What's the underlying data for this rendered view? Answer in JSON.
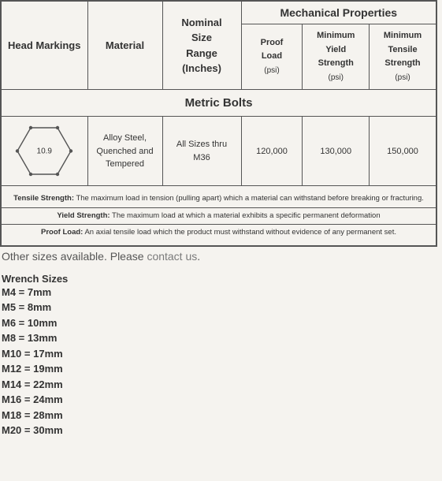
{
  "headers": {
    "head_markings": "Head Markings",
    "material": "Material",
    "nominal_l1": "Nominal",
    "nominal_l2": "Size",
    "nominal_l3": "Range",
    "nominal_l4": "(Inches)",
    "mech": "Mechanical Properties",
    "proof_l1": "Proof",
    "proof_l2": "Load",
    "proof_unit": "(psi)",
    "yield_l1": "Minimum",
    "yield_l2": "Yield",
    "yield_l3": "Strength",
    "yield_unit": "(psi)",
    "tensile_l1": "Minimum",
    "tensile_l2": "Tensile",
    "tensile_l3": "Strength",
    "tensile_unit": "(psi)"
  },
  "section_title": "Metric Bolts",
  "row": {
    "hex_marking": "10.9",
    "material": "Alloy Steel, Quenched and Tempered",
    "size_range": "All Sizes thru M36",
    "proof": "120,000",
    "yield": "130,000",
    "tensile": "150,000"
  },
  "defs": {
    "tensile_label": "Tensile Strength:",
    "tensile_text": " The maximum load in tension (pulling apart) which a material can withstand before breaking or fracturing.",
    "yield_label": "Yield Strength:",
    "yield_text": " The maximum load at which a material exhibits a specific permanent deformation",
    "proof_label": "Proof Load:",
    "proof_text": " An axial tensile load which the product must withstand without evidence of any permanent set."
  },
  "below": {
    "other_sizes_pre": "Other sizes available. Please ",
    "contact": "contact us",
    "other_sizes_post": "."
  },
  "wrench": {
    "title": "Wrench Sizes",
    "items": [
      "M4 = 7mm",
      "M5 = 8mm",
      "M6 = 10mm",
      "M8 = 13mm",
      "M10 = 17mm",
      "M12 = 19mm",
      "M14 = 22mm",
      "M16 = 24mm",
      "M18 = 28mm",
      "M20 = 30mm"
    ]
  },
  "styling": {
    "hex_stroke": "#555555",
    "hex_fill": "#f5f3ef",
    "background": "#f5f3ef",
    "border_color": "#555555",
    "text_color": "#333333"
  }
}
